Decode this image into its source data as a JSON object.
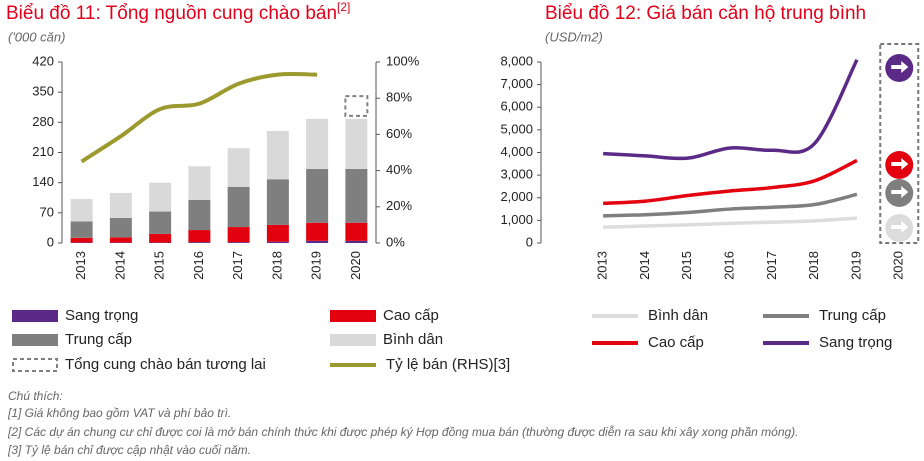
{
  "chart_data": [
    {
      "type": "bar",
      "stacked": true,
      "title": "Biểu đồ 11: Tổng nguồn cung chào bán",
      "title_note": "[2]",
      "y_label": "('000 căn)",
      "categories": [
        "2013",
        "2014",
        "2015",
        "2016",
        "2017",
        "2018",
        "2019",
        "2020"
      ],
      "ylim": [
        0,
        420
      ],
      "yticks": [
        0,
        70,
        140,
        210,
        280,
        350,
        420
      ],
      "y2lim": [
        0,
        100
      ],
      "y2ticks": [
        {
          "value": 0,
          "label": "0%"
        },
        {
          "value": 20,
          "label": "20%"
        },
        {
          "value": 40,
          "label": "40%"
        },
        {
          "value": 60,
          "label": "60%"
        },
        {
          "value": 80,
          "label": "80%"
        },
        {
          "value": 100,
          "label": "100%"
        }
      ],
      "series": [
        {
          "name": "Sang trọng",
          "type": "bar",
          "color": "#5b2a86",
          "values": [
            1,
            1,
            1,
            2,
            2,
            3,
            5,
            5
          ]
        },
        {
          "name": "Cao cấp",
          "type": "bar",
          "color": "#e3000f",
          "values": [
            11,
            12,
            20,
            28,
            35,
            39,
            42,
            42
          ]
        },
        {
          "name": "Trung cấp",
          "type": "bar",
          "color": "#7f7f7f",
          "values": [
            38,
            45,
            52,
            70,
            93,
            106,
            125,
            125
          ]
        },
        {
          "name": "Bình dân",
          "type": "bar",
          "color": "#d9d9d9",
          "values": [
            52,
            58,
            67,
            78,
            90,
            112,
            116,
            116
          ]
        },
        {
          "name": "Tổng cung chào bán tương lai",
          "type": "bar",
          "style": "dashed",
          "color": "#7f7f7f",
          "values": [
            null,
            null,
            null,
            null,
            null,
            null,
            null,
            55
          ]
        },
        {
          "name": "Tỷ lệ bán (RHS)[3]",
          "type": "line",
          "axis": "y2",
          "color": "#9c9a2e",
          "values": [
            45,
            59,
            74,
            77,
            88,
            93,
            93,
            null
          ]
        }
      ]
    },
    {
      "type": "line",
      "title": "Biểu đồ 12: Giá bán căn hộ trung bình",
      "y_label": "(USD/m2)",
      "categories": [
        "2013",
        "2014",
        "2015",
        "2016",
        "2017",
        "2018",
        "2019",
        "2020"
      ],
      "ylim": [
        0,
        8000
      ],
      "yticks": [
        0,
        {
          "value": 1000,
          "label": "1,000"
        },
        {
          "value": 2000,
          "label": "2,000"
        },
        {
          "value": 3000,
          "label": "3,000"
        },
        {
          "value": 4000,
          "label": "4,000"
        },
        {
          "value": 5000,
          "label": "5,000"
        },
        {
          "value": 6000,
          "label": "6,000"
        },
        {
          "value": 7000,
          "label": "7,000"
        },
        {
          "value": 8000,
          "label": "8,000"
        }
      ],
      "series": [
        {
          "name": "Bình dân",
          "type": "line",
          "color": "#dcdcdc",
          "values": [
            700,
            750,
            800,
            870,
            920,
            980,
            1100,
            null
          ]
        },
        {
          "name": "Trung cấp",
          "type": "line",
          "color": "#7f7f7f",
          "values": [
            1200,
            1250,
            1350,
            1500,
            1580,
            1700,
            2150,
            null
          ]
        },
        {
          "name": "Cao cấp",
          "type": "line",
          "color": "#e3000f",
          "values": [
            1750,
            1850,
            2100,
            2300,
            2450,
            2750,
            3650,
            null
          ]
        },
        {
          "name": "Sang trọng",
          "type": "line",
          "color": "#5b2a86",
          "values": [
            3950,
            3850,
            3750,
            4200,
            4100,
            4400,
            8100,
            null
          ]
        }
      ]
    }
  ],
  "notes": {
    "label": "Chú thích:",
    "items": [
      "[1] Giá không bao gồm VAT và phí bảo trì.",
      "[2] Các dự án chung cư chỉ được coi là  mở bán chính thức khi được phép ký Hợp đồng mua bán (thường được diễn ra sau khi xây xong phần móng).",
      "[3] Tỷ lệ bán chỉ được cập nhật vào cuối năm."
    ]
  }
}
